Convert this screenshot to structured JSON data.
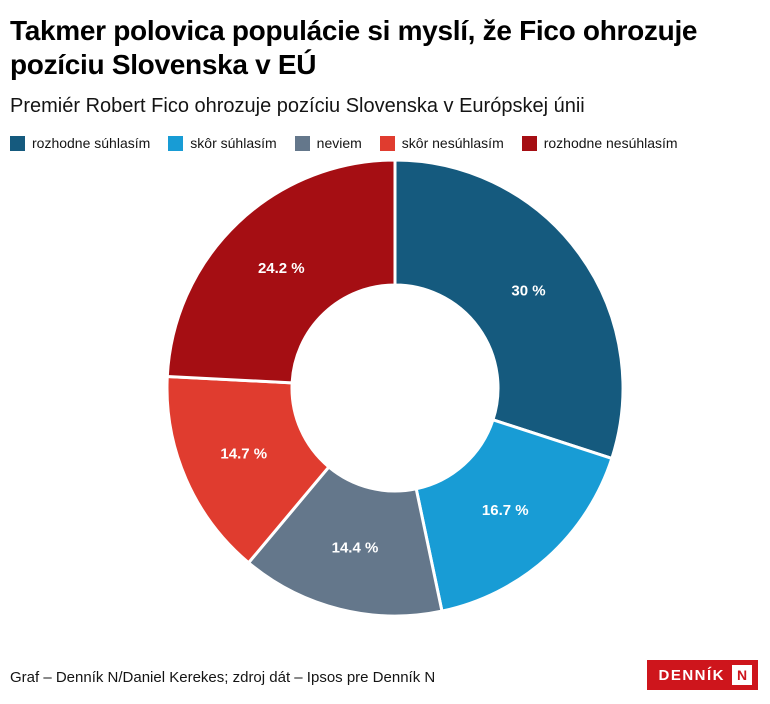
{
  "header": {
    "title": "Takmer polovica populácie si myslí, že Fico ohrozuje pozíciu Slovenska v EÚ",
    "subtitle": "Premiér Robert Fico ohrozuje pozíciu Slovenska v Európskej únii"
  },
  "chart_data": {
    "type": "pie",
    "variant": "donut",
    "start_angle_deg": 0,
    "direction": "clockwise",
    "unit": "%",
    "legend_position": "top",
    "series": [
      {
        "label": "rozhodne súhlasím",
        "value": 30,
        "display": "30 %",
        "color": "#155a7e"
      },
      {
        "label": "skôr súhlasím",
        "value": 16.7,
        "display": "16.7 %",
        "color": "#189cd5"
      },
      {
        "label": "neviem",
        "value": 14.4,
        "display": "14.4 %",
        "color": "#64778b"
      },
      {
        "label": "skôr nesúhlasím",
        "value": 14.7,
        "display": "14.7 %",
        "color": "#e03c2f"
      },
      {
        "label": "rozhodne nesúhlasím",
        "value": 24.2,
        "display": "24.2 %",
        "color": "#a50e13"
      }
    ]
  },
  "footer": {
    "credit": "Graf – Denník N/Daniel Kerekes; zdroj dát – Ipsos pre Denník N",
    "logo_text": "DENNÍK",
    "logo_n": "N",
    "logo_color": "#ce151c"
  }
}
